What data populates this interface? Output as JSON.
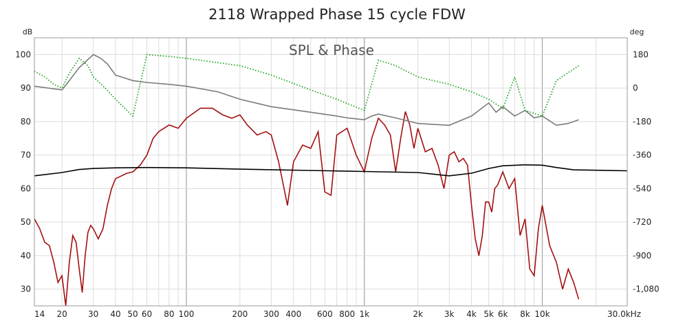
{
  "chart_data": {
    "type": "line",
    "title": "2118 Wrapped Phase 15 cycle FDW",
    "subtitle": "SPL & Phase",
    "y_left_unit": "dB",
    "y_right_unit": "deg",
    "xscale": "log",
    "xlim": [
      14,
      30000
    ],
    "ylim_left": [
      25,
      105
    ],
    "ylim_right": [
      -1170,
      270
    ],
    "grid": true,
    "x_ticks": [
      {
        "v": 14,
        "label": "14"
      },
      {
        "v": 20,
        "label": "20"
      },
      {
        "v": 30,
        "label": "30"
      },
      {
        "v": 40,
        "label": "40"
      },
      {
        "v": 50,
        "label": "50"
      },
      {
        "v": 60,
        "label": "60"
      },
      {
        "v": 80,
        "label": "80"
      },
      {
        "v": 100,
        "label": "100"
      },
      {
        "v": 200,
        "label": "200"
      },
      {
        "v": 300,
        "label": "300"
      },
      {
        "v": 400,
        "label": "400"
      },
      {
        "v": 600,
        "label": "600"
      },
      {
        "v": 800,
        "label": "800"
      },
      {
        "v": 1000,
        "label": "1k"
      },
      {
        "v": 2000,
        "label": "2k"
      },
      {
        "v": 3000,
        "label": "3k"
      },
      {
        "v": 4000,
        "label": "4k"
      },
      {
        "v": 5000,
        "label": "5k"
      },
      {
        "v": 6000,
        "label": "6k"
      },
      {
        "v": 8000,
        "label": "8k"
      },
      {
        "v": 10000,
        "label": "10k"
      },
      {
        "v": 30000,
        "label": "30.0kHz"
      }
    ],
    "y_left_ticks": [
      {
        "v": 30,
        "label": "30"
      },
      {
        "v": 40,
        "label": "40"
      },
      {
        "v": 50,
        "label": "50"
      },
      {
        "v": 60,
        "label": "60"
      },
      {
        "v": 70,
        "label": "70"
      },
      {
        "v": 80,
        "label": "80"
      },
      {
        "v": 90,
        "label": "90"
      },
      {
        "v": 100,
        "label": "100"
      }
    ],
    "y_right_ticks": [
      {
        "v": 180,
        "label": "180"
      },
      {
        "v": 0,
        "label": "0"
      },
      {
        "v": -180,
        "label": "-180"
      },
      {
        "v": -360,
        "label": "-360"
      },
      {
        "v": -540,
        "label": "-540"
      },
      {
        "v": -720,
        "label": "-720"
      },
      {
        "v": -900,
        "label": "-900"
      },
      {
        "v": -1080,
        "label": "-1,080"
      }
    ],
    "series": [
      {
        "color": "#a30f0f",
        "axis": "left",
        "style": "solid",
        "x": [
          14,
          15,
          16,
          17,
          18,
          19,
          20,
          21,
          22,
          23,
          24,
          25,
          26,
          27,
          28,
          29,
          30,
          32,
          34,
          36,
          38,
          40,
          42,
          44,
          46,
          50,
          55,
          60,
          65,
          70,
          80,
          90,
          100,
          120,
          140,
          160,
          180,
          200,
          220,
          250,
          280,
          300,
          330,
          370,
          400,
          450,
          500,
          550,
          600,
          650,
          700,
          800,
          900,
          1000,
          1100,
          1200,
          1300,
          1400,
          1500,
          1600,
          1700,
          1800,
          1900,
          2000,
          2200,
          2400,
          2600,
          2800,
          3000,
          3200,
          3400,
          3600,
          3800,
          4000,
          4200,
          4400,
          4600,
          4800,
          5000,
          5200,
          5400,
          5600,
          6000,
          6500,
          7000,
          7500,
          8000,
          8500,
          9000,
          9500,
          10000,
          11000,
          12000,
          13000,
          14000,
          15000,
          16000
        ],
        "y": [
          51,
          48,
          44,
          43,
          38,
          32,
          34,
          25,
          38,
          46,
          44,
          36,
          29,
          40,
          47,
          49,
          48,
          45,
          48,
          55,
          60,
          63,
          63.5,
          64,
          64.5,
          65,
          67,
          70,
          75,
          77,
          79,
          78,
          81,
          84,
          84,
          82,
          81,
          82,
          79,
          76,
          77,
          76,
          68,
          55,
          68,
          73,
          72,
          77,
          59,
          58,
          76,
          78,
          70,
          65,
          75,
          81,
          79,
          76,
          65,
          75,
          83,
          79,
          72,
          78,
          71,
          72,
          67,
          60,
          70,
          71,
          68,
          69,
          67,
          55,
          45,
          40,
          46,
          56,
          56,
          53,
          60,
          61,
          65,
          60,
          63,
          46,
          51,
          36,
          34,
          48,
          55,
          43,
          38,
          30,
          36,
          32,
          27
        ],
        "name": ""
      },
      {
        "color": "#000000",
        "axis": "left",
        "style": "solid",
        "x": [
          14,
          20,
          25,
          30,
          40,
          60,
          100,
          200,
          500,
          1000,
          2000,
          3000,
          4000,
          5000,
          6000,
          8000,
          10000,
          12000,
          15000,
          30000
        ],
        "y": [
          63.8,
          64.8,
          65.7,
          66,
          66.2,
          66.3,
          66.2,
          65.8,
          65.4,
          65.1,
          64.8,
          63.8,
          64.6,
          66,
          66.8,
          67.1,
          67,
          66.3,
          65.6,
          65.3
        ],
        "name": ""
      },
      {
        "color": "#7a7a7a",
        "axis": "right",
        "style": "solid",
        "x": [
          14,
          20,
          22,
          25,
          30,
          33,
          36,
          40,
          50,
          60,
          80,
          100,
          150,
          200,
          300,
          500,
          700,
          800,
          1000,
          1100,
          1200,
          1500,
          2000,
          3000,
          4000,
          5000,
          5500,
          6000,
          7000,
          8000,
          9000,
          10000,
          12000,
          14000,
          16000
        ],
        "y": [
          10,
          -10,
          40,
          110,
          180,
          160,
          130,
          70,
          40,
          30,
          20,
          10,
          -20,
          -60,
          -100,
          -130,
          -150,
          -160,
          -170,
          -150,
          -140,
          -160,
          -190,
          -200,
          -150,
          -80,
          -130,
          -100,
          -150,
          -120,
          -160,
          -150,
          -200,
          -190,
          -170
        ],
        "name": ""
      },
      {
        "color": "#1aa31a",
        "axis": "right",
        "style": "dotted",
        "x": [
          14,
          16,
          18,
          20,
          22,
          25,
          28,
          30,
          35,
          40,
          50,
          60,
          80,
          100,
          200,
          300,
          500,
          700,
          1000,
          1200,
          1500,
          2000,
          3000,
          4000,
          5000,
          6000,
          7000,
          8000,
          10000,
          12000,
          16000
        ],
        "y": [
          90,
          60,
          20,
          0,
          80,
          160,
          120,
          60,
          0,
          -60,
          -150,
          180,
          170,
          160,
          120,
          70,
          -10,
          -60,
          -120,
          150,
          120,
          60,
          20,
          -20,
          -60,
          -110,
          60,
          -120,
          -150,
          40,
          120
        ],
        "name": ""
      }
    ]
  }
}
